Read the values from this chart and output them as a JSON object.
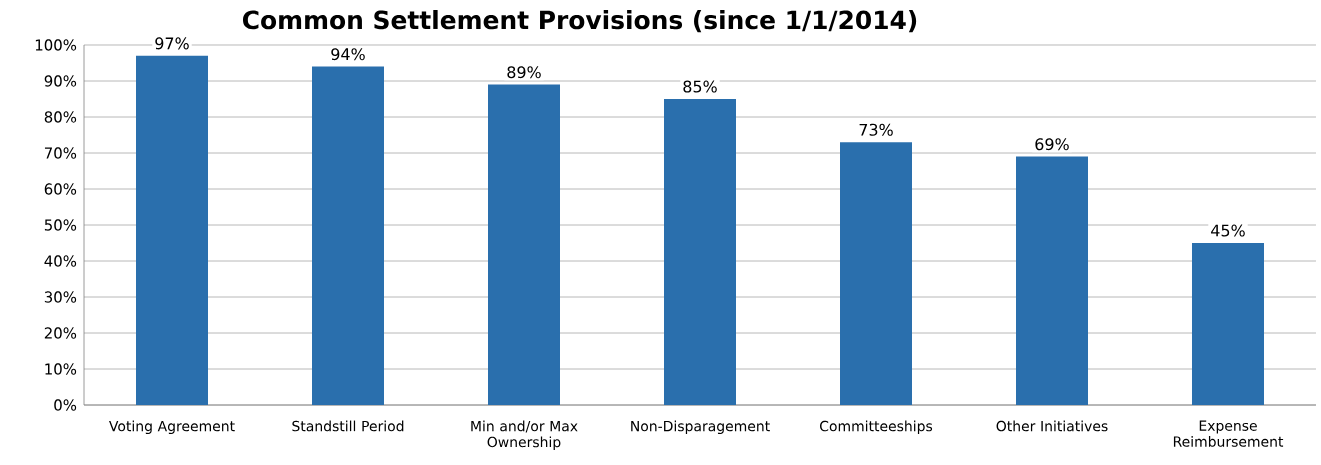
{
  "chart_data": {
    "type": "bar",
    "title": "Common Settlement Provisions (since 1/1/2014)",
    "categories": [
      "Voting Agreement",
      "Standstill Period",
      "Min and/or Max Ownership",
      "Non-Disparagement",
      "Committeeships",
      "Other Initiatives",
      "Expense Reimbursement"
    ],
    "values": [
      97,
      94,
      89,
      85,
      73,
      69,
      45
    ],
    "value_labels": [
      "97%",
      "94%",
      "89%",
      "85%",
      "73%",
      "69%",
      "45%"
    ],
    "color": "#2a6fad",
    "ylim": [
      0,
      100
    ],
    "yticks": [
      {
        "value": 0,
        "label": "0%"
      },
      {
        "value": 10,
        "label": "10%"
      },
      {
        "value": 20,
        "label": "20%"
      },
      {
        "value": 30,
        "label": "30%"
      },
      {
        "value": 40,
        "label": "40%"
      },
      {
        "value": 50,
        "label": "50%"
      },
      {
        "value": 60,
        "label": "60%"
      },
      {
        "value": 70,
        "label": "70%"
      },
      {
        "value": 80,
        "label": "80%"
      },
      {
        "value": 90,
        "label": "90%"
      },
      {
        "value": 100,
        "label": "100%"
      }
    ],
    "grid": "y"
  }
}
